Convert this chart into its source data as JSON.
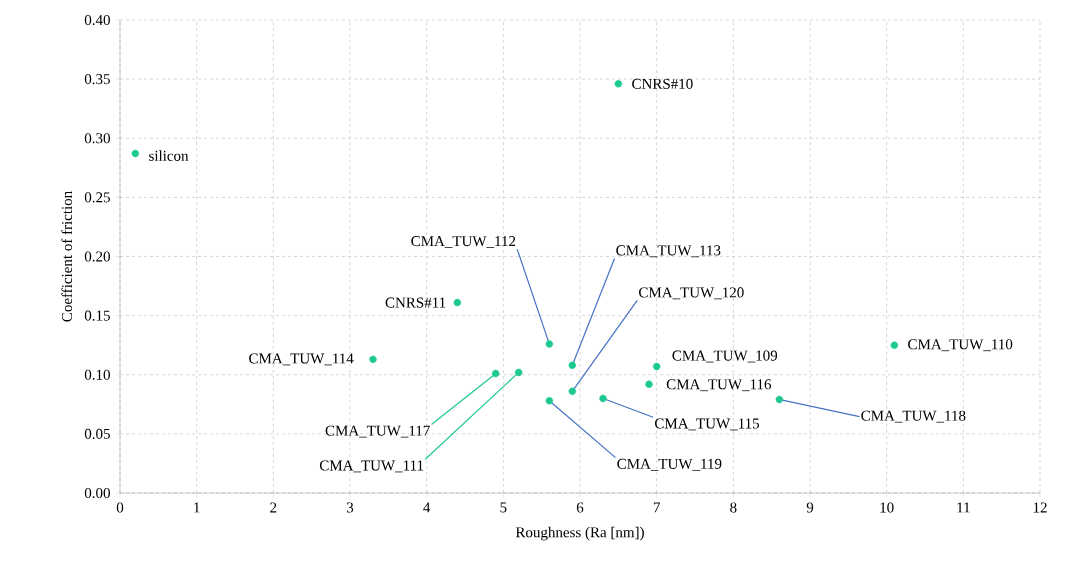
{
  "chart_data": {
    "type": "scatter",
    "xlabel": "Roughness (Ra [nm])",
    "ylabel": "Coefficient of friction",
    "x": [
      0.2,
      6.5,
      4.4,
      3.3,
      4.9,
      5.2,
      5.6,
      5.9,
      5.9,
      5.6,
      6.3,
      7.0,
      6.9,
      8.6,
      10.1
    ],
    "values": [
      0.287,
      0.346,
      0.161,
      0.113,
      0.101,
      0.102,
      0.126,
      0.108,
      0.086,
      0.078,
      0.08,
      0.107,
      0.092,
      0.079,
      0.125
    ],
    "color": "#1dc990",
    "grid": true,
    "xlim": [
      0,
      12
    ],
    "xticks": [
      0,
      1,
      2,
      3,
      4,
      5,
      6,
      7,
      8,
      9,
      10,
      11,
      12
    ],
    "ylim": [
      0,
      0.4
    ],
    "yticks": [
      {
        "value": 0,
        "label": "0.00"
      },
      {
        "value": 0.05,
        "label": "0.05"
      },
      {
        "value": 0.1,
        "label": "0.10"
      },
      {
        "value": 0.15,
        "label": "0.15"
      },
      {
        "value": 0.2,
        "label": "0.20"
      },
      {
        "value": 0.25,
        "label": "0.25"
      },
      {
        "value": 0.3,
        "label": "0.30"
      },
      {
        "value": 0.35,
        "label": "0.35"
      },
      {
        "value": 0.4,
        "label": "0.40"
      }
    ],
    "annotations": [
      {
        "text": "silicon",
        "x": 0.2,
        "y": 0.287
      },
      {
        "text": "CNRS#10",
        "x": 6.5,
        "y": 0.346
      },
      {
        "text": "CNRS#11",
        "x": 4.4,
        "y": 0.161
      },
      {
        "text": "CMA_TUW_114",
        "x": 3.3,
        "y": 0.113
      },
      {
        "text": "CMA_TUW_117",
        "x": 4.9,
        "y": 0.101
      },
      {
        "text": "CMA_TUW_111",
        "x": 5.2,
        "y": 0.102
      },
      {
        "text": "CMA_TUW_112",
        "x": 5.6,
        "y": 0.126
      },
      {
        "text": "CMA_TUW_113",
        "x": 5.9,
        "y": 0.108
      },
      {
        "text": "CMA_TUW_120",
        "x": 5.9,
        "y": 0.086
      },
      {
        "text": "CMA_TUW_119",
        "x": 5.6,
        "y": 0.078
      },
      {
        "text": "CMA_TUW_115",
        "x": 6.3,
        "y": 0.08
      },
      {
        "text": "CMA_TUW_109",
        "x": 7.0,
        "y": 0.107
      },
      {
        "text": "CMA_TUW_116",
        "x": 6.9,
        "y": 0.092
      },
      {
        "text": "CMA_TUW_118",
        "x": 8.6,
        "y": 0.079
      },
      {
        "text": "CMA_TUW_110",
        "x": 10.1,
        "y": 0.125
      }
    ]
  }
}
